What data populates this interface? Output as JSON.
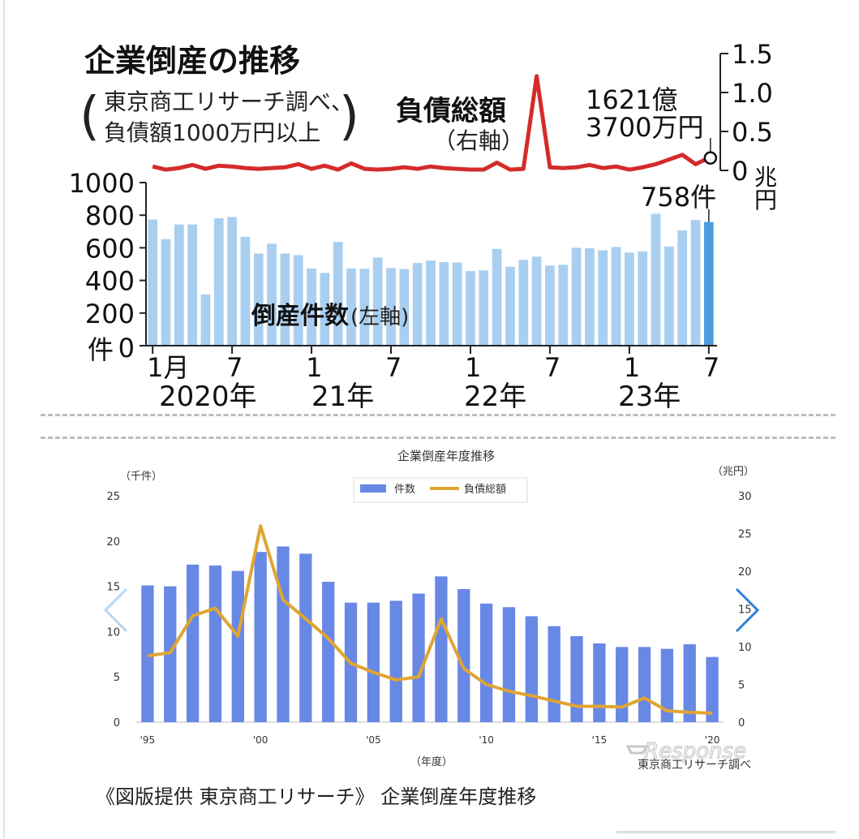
{
  "top_chart": {
    "title": "企業倒産の推移",
    "source_line1": "東京商工リサーチ調べ、",
    "source_line2": "負債額1000万円以上",
    "right_series_label": "負債総額",
    "right_series_sub": "（右軸）",
    "last_debt_line1": "1621億",
    "last_debt_line2": "3700万円",
    "last_count_label": "758件",
    "left_series_label": "倒産件数",
    "left_series_sub": "(左軸)",
    "left_axis_unit": "件",
    "right_axis_unit_1": "兆",
    "right_axis_unit_2": "円",
    "x_ticks": [
      "1月",
      "7",
      "1",
      "7",
      "1",
      "7",
      "1",
      "7"
    ],
    "year_labels": [
      "2020年",
      "21年",
      "22年",
      "23年"
    ]
  },
  "bottom_chart": {
    "title": "企業倒産年度推移",
    "left_unit": "（千件）",
    "right_unit": "（兆円）",
    "x_axis_label": "（年度）",
    "legend_count": "件数",
    "legend_debt": "負債総額",
    "source": "東京商工リサーチ調べ",
    "watermark": "Response"
  },
  "caption": "《図版提供 東京商工リサーチ》 企業倒産年度推移",
  "colors": {
    "bar_light": "#a9cff0",
    "bar_last": "#4d9be0",
    "debt_red": "#d42b2b",
    "bar_blue": "#6888e6",
    "debt_orange": "#e0a532",
    "nav": "#2f7fd8"
  },
  "icons": {
    "prev": "chevron-left-icon",
    "next": "chevron-right-icon"
  },
  "chart_data": [
    {
      "type": "bar",
      "title": "企業倒産の推移",
      "x": [
        "2020-01",
        "2020-02",
        "2020-03",
        "2020-04",
        "2020-05",
        "2020-06",
        "2020-07",
        "2020-08",
        "2020-09",
        "2020-10",
        "2020-11",
        "2020-12",
        "2021-01",
        "2021-02",
        "2021-03",
        "2021-04",
        "2021-05",
        "2021-06",
        "2021-07",
        "2021-08",
        "2021-09",
        "2021-10",
        "2021-11",
        "2021-12",
        "2022-01",
        "2022-02",
        "2022-03",
        "2022-04",
        "2022-05",
        "2022-06",
        "2022-07",
        "2022-08",
        "2022-09",
        "2022-10",
        "2022-11",
        "2022-12",
        "2023-01",
        "2023-02",
        "2023-03",
        "2023-04",
        "2023-05",
        "2023-06",
        "2023-07"
      ],
      "x_tick_labels": [
        "1月",
        "7",
        "1",
        "7",
        "1",
        "7",
        "1",
        "7"
      ],
      "ylim": [
        0,
        1000
      ],
      "y_ticks": [
        0,
        200,
        400,
        600,
        800,
        1000
      ],
      "y2lim": [
        0,
        1.5
      ],
      "y2_ticks": [
        0,
        0.5,
        1.0,
        1.5
      ],
      "series": [
        {
          "name": "倒産件数",
          "axis": "left",
          "type": "bar",
          "values": [
            773,
            653,
            743,
            743,
            314,
            781,
            789,
            667,
            565,
            625,
            565,
            555,
            473,
            446,
            636,
            473,
            472,
            541,
            476,
            470,
            507,
            522,
            512,
            510,
            457,
            462,
            593,
            484,
            526,
            546,
            491,
            496,
            600,
            597,
            585,
            605,
            571,
            578,
            809,
            608,
            707,
            771,
            758
          ]
        },
        {
          "name": "負債総額",
          "axis": "right",
          "type": "line",
          "values": [
            0.05,
            0.01,
            0.03,
            0.07,
            0.02,
            0.06,
            0.05,
            0.03,
            0.02,
            0.03,
            0.04,
            0.08,
            0.02,
            0.06,
            0.01,
            0.09,
            0.02,
            0.01,
            0.02,
            0.04,
            0.02,
            0.05,
            0.03,
            0.02,
            0.01,
            0.01,
            0.1,
            0.01,
            0.02,
            1.21,
            0.04,
            0.03,
            0.04,
            0.07,
            0.03,
            0.05,
            0.01,
            0.04,
            0.08,
            0.14,
            0.2,
            0.08,
            0.16
          ]
        }
      ],
      "annotations": [
        "1621億",
        "3700万円",
        "758件"
      ]
    },
    {
      "type": "bar",
      "title": "企業倒産年度推移",
      "x": [
        "'95",
        "'96",
        "'97",
        "'98",
        "'99",
        "'00",
        "'01",
        "'02",
        "'03",
        "'04",
        "'05",
        "'06",
        "'07",
        "'08",
        "'09",
        "'10",
        "'11",
        "'12",
        "'13",
        "'14",
        "'15",
        "'16",
        "'17",
        "'18",
        "'19",
        "'20"
      ],
      "x_tick_labels": [
        "'95",
        "'00",
        "'05",
        "'10",
        "'15",
        "'20"
      ],
      "ylim": [
        0,
        25
      ],
      "y_ticks": [
        0,
        5,
        10,
        15,
        20,
        25
      ],
      "y2lim": [
        0,
        30
      ],
      "y2_ticks": [
        0,
        5,
        10,
        15,
        20,
        25,
        30
      ],
      "xlabel": "（年度）",
      "series": [
        {
          "name": "件数",
          "axis": "left",
          "type": "bar",
          "values": [
            15.1,
            15.0,
            17.4,
            17.3,
            16.7,
            18.8,
            19.4,
            18.6,
            15.5,
            13.2,
            13.2,
            13.4,
            14.2,
            16.1,
            14.7,
            13.1,
            12.7,
            11.7,
            10.6,
            9.5,
            8.7,
            8.3,
            8.3,
            8.1,
            8.6,
            7.2
          ]
        },
        {
          "name": "負債総額",
          "axis": "right",
          "type": "line",
          "values": [
            8.8,
            9.2,
            14.1,
            15.1,
            11.4,
            26.0,
            16.2,
            13.7,
            11.1,
            7.8,
            6.6,
            5.6,
            6.0,
            13.7,
            7.1,
            5.0,
            4.1,
            3.5,
            2.8,
            2.1,
            2.1,
            2.0,
            3.2,
            1.5,
            1.3,
            1.2
          ]
        }
      ]
    }
  ]
}
